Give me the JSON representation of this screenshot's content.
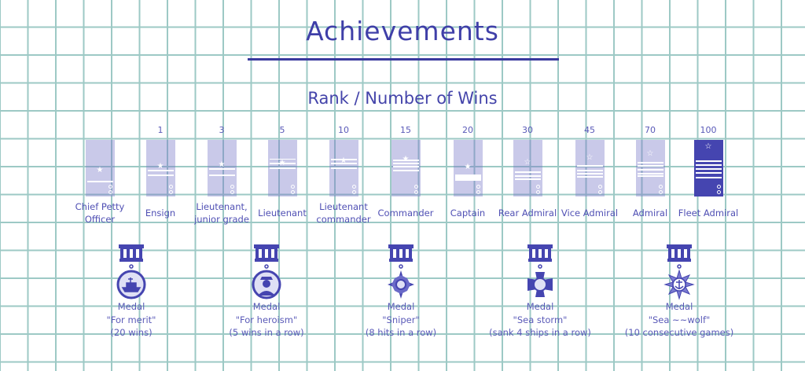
{
  "title": "Achievements",
  "subtitle": "Rank / Number of Wins",
  "ranks": [
    {
      "wins": "",
      "label": [
        "Chief Petty",
        "Officer"
      ],
      "unlocked": false
    },
    {
      "wins": "1",
      "label": [
        "Ensign"
      ],
      "unlocked": false
    },
    {
      "wins": "3",
      "label": [
        "Lieutenant,",
        "junior grade"
      ],
      "unlocked": false
    },
    {
      "wins": "5",
      "label": [
        "Lieutenant"
      ],
      "unlocked": false
    },
    {
      "wins": "10",
      "label": [
        "Lieutenant",
        "commander"
      ],
      "unlocked": false
    },
    {
      "wins": "15",
      "label": [
        "Commander"
      ],
      "unlocked": false
    },
    {
      "wins": "20",
      "label": [
        "Captain"
      ],
      "unlocked": false
    },
    {
      "wins": "30",
      "label": [
        "Rear Admiral"
      ],
      "unlocked": false
    },
    {
      "wins": "45",
      "label": [
        "Vice Admiral"
      ],
      "unlocked": false
    },
    {
      "wins": "70",
      "label": [
        "Admiral"
      ],
      "unlocked": false
    },
    {
      "wins": "100",
      "label": [
        "Fleet Admiral"
      ],
      "unlocked": true
    }
  ],
  "medals": [
    {
      "icon": "ship-medal-icon",
      "lines": [
        "Medal",
        "\"For merit\"",
        "(20 wins)"
      ]
    },
    {
      "icon": "sailor-medal-icon",
      "lines": [
        "Medal",
        "\"For heroism\"",
        "(5 wins in a row)"
      ]
    },
    {
      "icon": "compass-star-medal-icon",
      "lines": [
        "Medal",
        "\"Sniper\"",
        "(8 hits in a row)"
      ]
    },
    {
      "icon": "cross-medal-icon",
      "lines": [
        "Medal",
        "\"Sea storm\"",
        "(sank 4 ships in a row)"
      ]
    },
    {
      "icon": "anchor-star-medal-icon",
      "lines": [
        "Medal",
        "\"Sea ~~wolf\"",
        "(10 consecutive games)"
      ]
    }
  ],
  "colors": {
    "accent": "#4545b0",
    "grid": "#9dc9c5"
  }
}
